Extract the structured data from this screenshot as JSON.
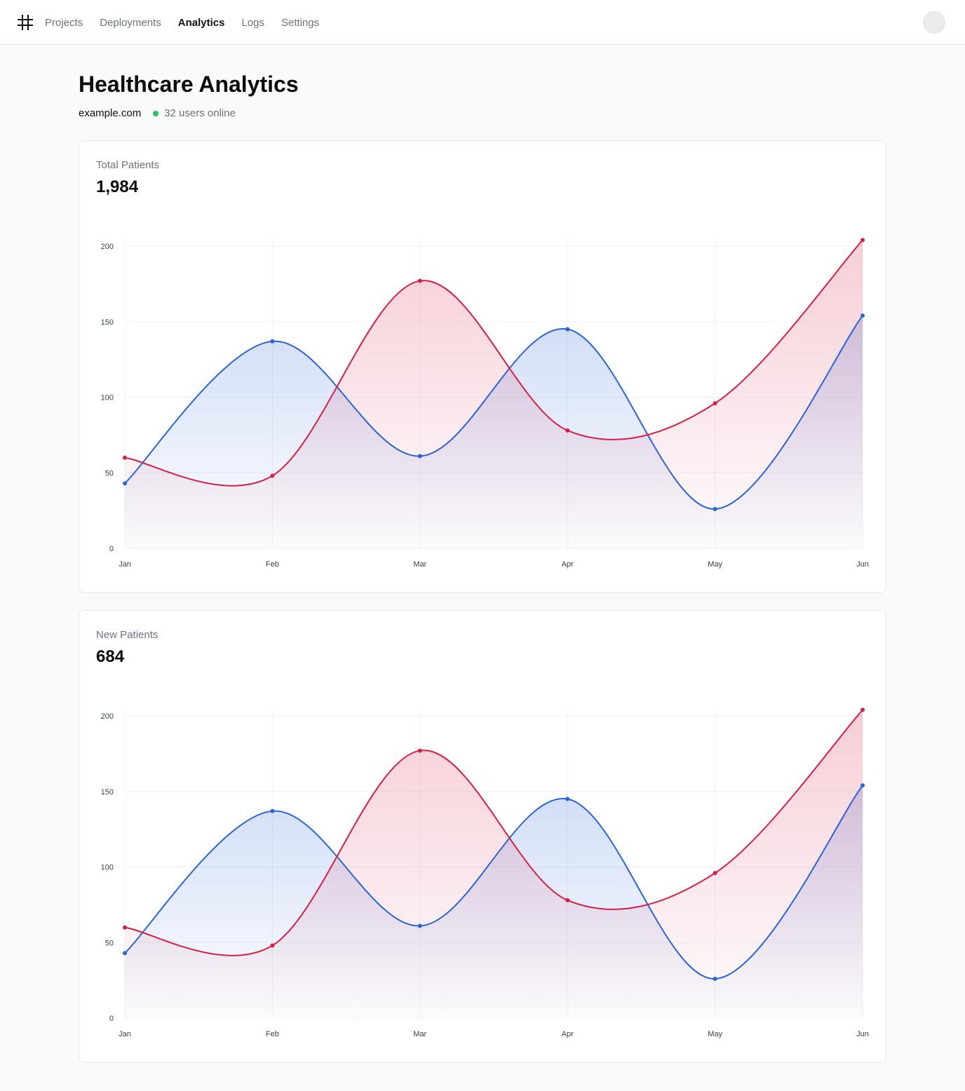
{
  "nav": {
    "items": [
      {
        "label": "Projects",
        "active": false
      },
      {
        "label": "Deployments",
        "active": false
      },
      {
        "label": "Analytics",
        "active": true
      },
      {
        "label": "Logs",
        "active": false
      },
      {
        "label": "Settings",
        "active": false
      }
    ]
  },
  "header": {
    "title": "Healthcare Analytics",
    "domain": "example.com",
    "online_status": "32 users online"
  },
  "colors": {
    "series_blue": "#2b63d9",
    "series_red": "#d61f45",
    "status_green": "#22c55e"
  },
  "cards": [
    {
      "label": "Total Patients",
      "value": "1,984"
    },
    {
      "label": "New Patients",
      "value": "684"
    }
  ],
  "chart_data": [
    {
      "type": "area",
      "categories": [
        "Jan",
        "Feb",
        "Mar",
        "Apr",
        "May",
        "Jun"
      ],
      "ylim": [
        0,
        200
      ],
      "yticks": [
        0,
        50,
        100,
        150,
        200
      ],
      "grid": true,
      "series": [
        {
          "color": "#2b63d9",
          "values": [
            43,
            137,
            61,
            145,
            26,
            154
          ]
        },
        {
          "color": "#d61f45",
          "values": [
            60,
            48,
            177,
            78,
            96,
            204
          ]
        }
      ]
    },
    {
      "type": "area",
      "categories": [
        "Jan",
        "Feb",
        "Mar",
        "Apr",
        "May",
        "Jun"
      ],
      "ylim": [
        0,
        200
      ],
      "yticks": [
        0,
        50,
        100,
        150,
        200
      ],
      "grid": true,
      "series": [
        {
          "color": "#2b63d9",
          "values": [
            43,
            137,
            61,
            145,
            26,
            154
          ]
        },
        {
          "color": "#d61f45",
          "values": [
            60,
            48,
            177,
            78,
            96,
            204
          ]
        }
      ]
    }
  ]
}
